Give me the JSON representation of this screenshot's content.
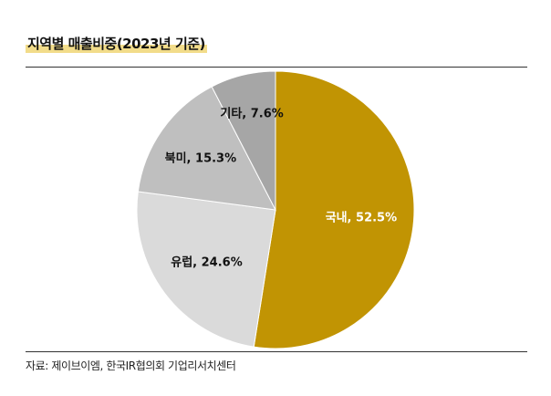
{
  "title": "지역별 매출비중(2023년 기준)",
  "source": "자료: 제이브이엠, 한국IR협의회 기업리서치센터",
  "chart_data": {
    "type": "pie",
    "slices": [
      {
        "name": "국내",
        "value": 52.5,
        "label": "국내, 52.5%",
        "color": "#c19403",
        "text_color": "#ffffff"
      },
      {
        "name": "유럽",
        "value": 24.6,
        "label": "유럽, 24.6%",
        "color": "#dadada",
        "text_color": "#111111"
      },
      {
        "name": "북미",
        "value": 15.3,
        "label": "북미, 15.3%",
        "color": "#bfbfbf",
        "text_color": "#111111"
      },
      {
        "name": "기타",
        "value": 7.6,
        "label": "기타, 7.6%",
        "color": "#a6a6a6",
        "text_color": "#111111"
      }
    ],
    "start_angle": "12 o'clock",
    "direction": "clockwise",
    "legend": "none"
  }
}
